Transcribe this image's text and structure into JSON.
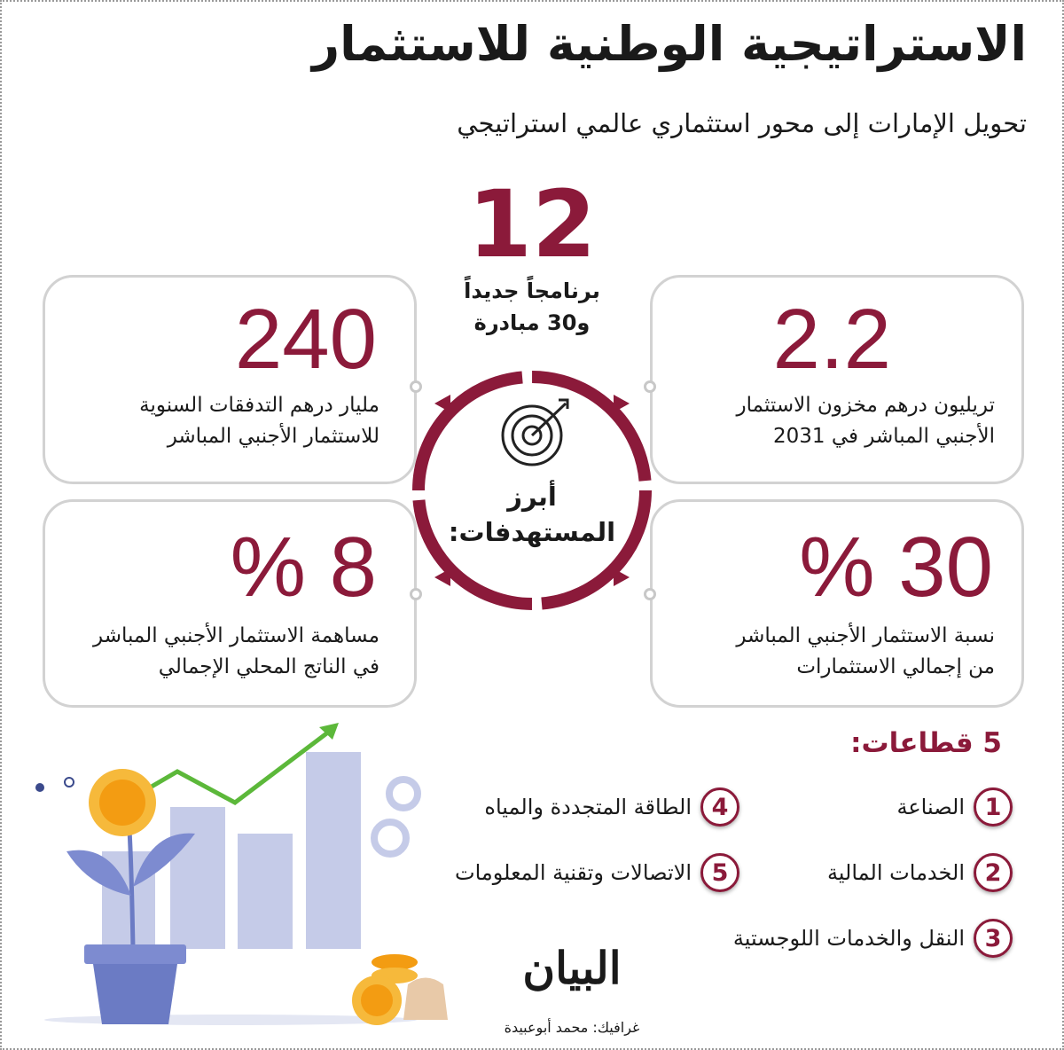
{
  "title": "الاستراتيجية الوطنية للاستثمار",
  "subtitle": "تحويل الإمارات إلى محور استثماري عالمي استراتيجي",
  "center": {
    "number": "12",
    "line1": "برنامجاً جديداً",
    "line2": "و30 مبادرة",
    "label1": "أبرز",
    "label2": "المستهدفات:",
    "icon": "target-icon"
  },
  "targets": [
    {
      "value": "240",
      "line1": "مليار درهم التدفقات السنوية",
      "line2": "للاستثمار الأجنبي المباشر"
    },
    {
      "value": "2.2",
      "line1": "تريليون درهم مخزون الاستثمار",
      "line2": "الأجنبي المباشر في 2031"
    },
    {
      "value": "% 8",
      "line1": "مساهمة الاستثمار الأجنبي المباشر",
      "line2": "في الناتج المحلي الإجمالي"
    },
    {
      "value": "% 30",
      "line1": "نسبة الاستثمار الأجنبي المباشر",
      "line2": "من إجمالي الاستثمارات"
    }
  ],
  "sectors": {
    "heading": "5 قطاعات:",
    "items": [
      {
        "n": "1",
        "label": "الصناعة"
      },
      {
        "n": "2",
        "label": "الخدمات المالية"
      },
      {
        "n": "3",
        "label": "النقل والخدمات اللوجستية"
      },
      {
        "n": "4",
        "label": "الطاقة المتجددة والمياه"
      },
      {
        "n": "5",
        "label": "الاتصالات وتقنية المعلومات"
      }
    ]
  },
  "logo": "البيان",
  "credit": "غرافيك: محمد أبوعبيدة",
  "colors": {
    "accent": "#8b1a3a",
    "border": "#d2d2d2",
    "illustration": "#c5cbe8"
  }
}
